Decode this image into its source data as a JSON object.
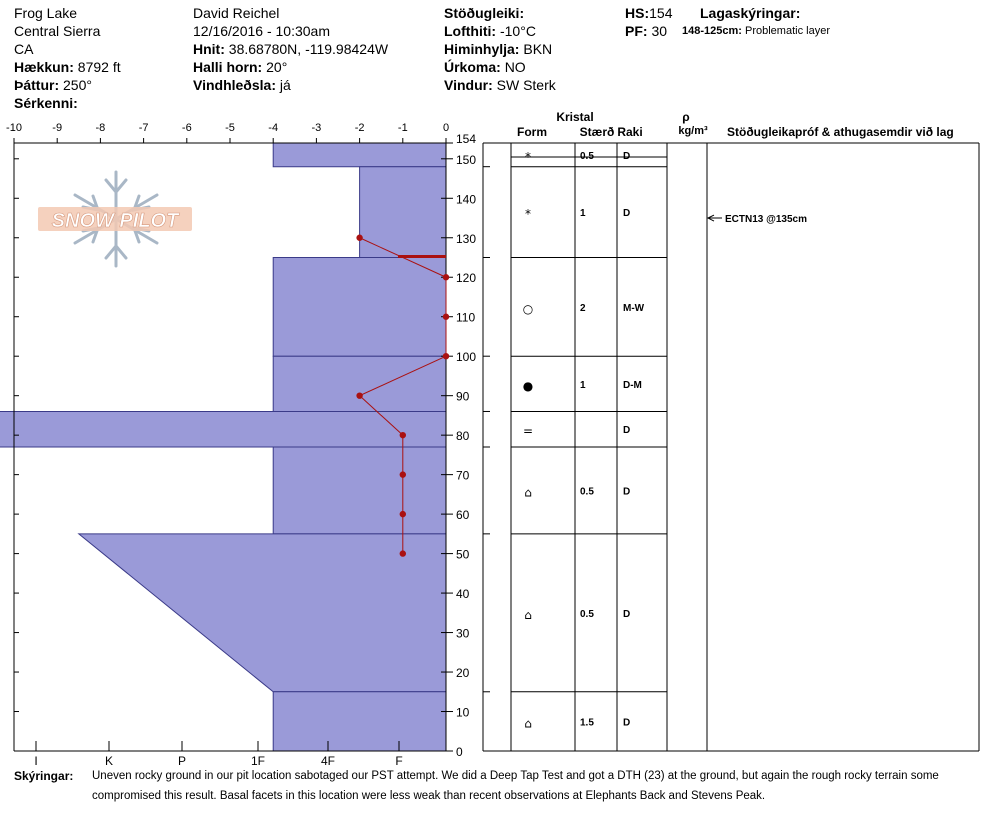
{
  "header": {
    "location": "Frog Lake",
    "range": "Central Sierra",
    "state": "CA",
    "elevation_label": "Hækkun:",
    "elevation": "8792 ft",
    "aspect_label": "Þáttur:",
    "aspect": "250°",
    "features_label": "Sérkenni:",
    "observer": "David Reichel",
    "datetime": "12/16/2016 - 10:30am",
    "coords_label": "Hnit:",
    "coords": "38.68780N, -119.98424W",
    "slope_label": "Halli horn:",
    "slope": "20°",
    "wind_loading_label": "Vindhleðsla:",
    "wind_loading": "já",
    "stability_label": "Stöðugleiki:",
    "air_temp_label": "Lofthiti:",
    "air_temp": "-10°C",
    "sky_label": "Himinhylja:",
    "sky": "BKN",
    "precip_label": "Úrkoma:",
    "precip": "NO",
    "wind_label": "Vindur:",
    "wind": "SW Sterk",
    "hs_label": "HS:",
    "hs": "154",
    "pf_label": "PF:",
    "pf": "30",
    "legend_title": "Lagaskýringar:",
    "problem_range": "148-125cm:",
    "problem_text": "Problematic layer"
  },
  "logo": {
    "text": "SNOW PILOT"
  },
  "table_headers": {
    "crystal": "Kristal",
    "form": "Form",
    "size": "Stærð",
    "moisture": "Raki",
    "density_symbol": "ρ",
    "density_unit": "kg/m³",
    "tests": "Stöðugleikapróf & athugasemdir við lag"
  },
  "colors": {
    "layer_fill": "#9a9ad8",
    "profile_line": "#aa1111",
    "problem_marker": "#aa1111"
  },
  "chart_data": {
    "type": "snow_profile",
    "temp_axis": {
      "ticks": [
        "-10",
        "-9",
        "-8",
        "-7",
        "-6",
        "-5",
        "-4",
        "-3",
        "-2",
        "-1",
        "0"
      ],
      "range": [
        -10,
        0
      ]
    },
    "height_axis": {
      "ticks": [
        "0",
        "10",
        "20",
        "30",
        "40",
        "50",
        "60",
        "70",
        "80",
        "90",
        "100",
        "110",
        "120",
        "130",
        "140",
        "150",
        "154"
      ],
      "range": [
        0,
        154
      ]
    },
    "hardness_axis": {
      "ticks": [
        "I",
        "K",
        "P",
        "1F",
        "4F",
        "F"
      ]
    },
    "layers": [
      {
        "top": 154,
        "bottom": 148,
        "hardness_top": 4,
        "hardness_bottom": 4,
        "form": "*",
        "size": "0.5",
        "moisture": "D"
      },
      {
        "top": 148,
        "bottom": 125,
        "hardness_top": 2,
        "hardness_bottom": 2,
        "form": "*",
        "size": "1",
        "moisture": "D"
      },
      {
        "top": 125,
        "bottom": 100,
        "hardness_top": 4,
        "hardness_bottom": 4,
        "form": "○",
        "size": "2",
        "moisture": "M-W"
      },
      {
        "top": 100,
        "bottom": 86,
        "hardness_top": 4,
        "hardness_bottom": 4,
        "form": "●",
        "size": "1",
        "moisture": "D-M"
      },
      {
        "top": 86,
        "bottom": 77,
        "hardness_top": 14.5,
        "hardness_bottom": 14.5,
        "form": "=",
        "size": "",
        "moisture": "D"
      },
      {
        "top": 77,
        "bottom": 55,
        "hardness_top": 4,
        "hardness_bottom": 4,
        "form": "⌂",
        "size": "0.5",
        "moisture": "D"
      },
      {
        "top": 55,
        "bottom": 15,
        "hardness_top": 8.5,
        "hardness_bottom": 4,
        "form": "⌂",
        "size": "0.5",
        "moisture": "D"
      },
      {
        "top": 15,
        "bottom": 0,
        "hardness_top": 4,
        "hardness_bottom": 4,
        "form": "⌂",
        "size": "1.5",
        "moisture": "D"
      }
    ],
    "temperature_profile": [
      {
        "height": 130,
        "temp": -2
      },
      {
        "height": 120,
        "temp": 0
      },
      {
        "height": 110,
        "temp": 0
      },
      {
        "height": 100,
        "temp": 0
      },
      {
        "height": 90,
        "temp": -2
      },
      {
        "height": 80,
        "temp": -1
      },
      {
        "height": 70,
        "temp": -1
      },
      {
        "height": 60,
        "temp": -1
      },
      {
        "height": 50,
        "temp": -1
      }
    ],
    "problematic_layer": {
      "top": 148,
      "bottom": 125
    },
    "tests": [
      {
        "height": 135,
        "text": "ECTN13 @135cm"
      }
    ]
  },
  "footer": {
    "comments_label": "Skýringar:",
    "line1": "Uneven rocky ground in our pit location sabotaged our PST attempt. We did a Deep Tap Test and got a DTH (23) at the ground, but again the rough rocky terrain some",
    "line2": "compromised this result. Basal facets in this location were less weak than recent observations at Elephants Back and Stevens Peak."
  }
}
